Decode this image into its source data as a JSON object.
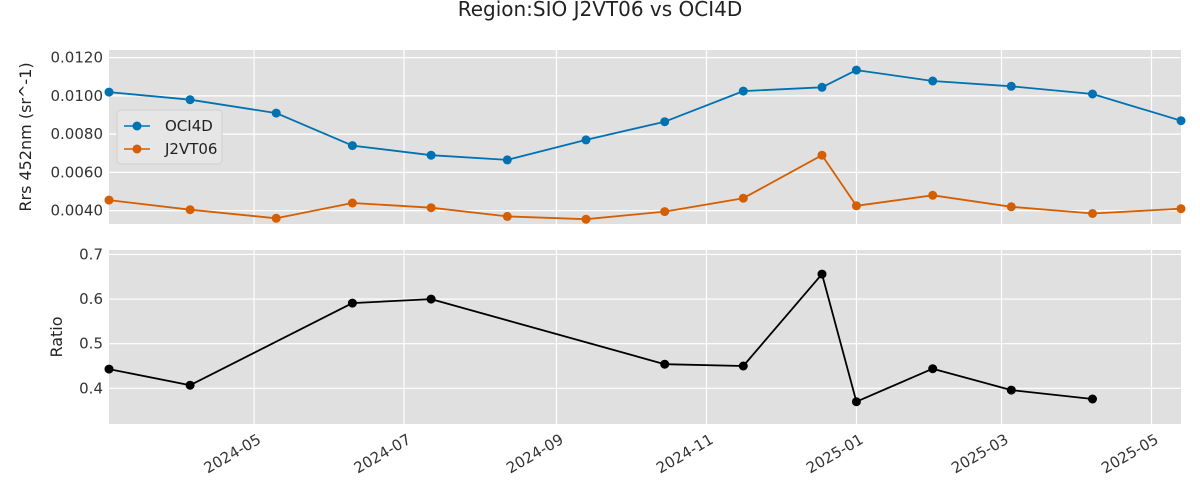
{
  "figure": {
    "title": "Region:SIO J2VT06 vs OCI4D"
  },
  "colors": {
    "oci": "#0072B2",
    "j2": "#D55E00",
    "ratio": "#000000",
    "panel_bg": "#E0E0E0",
    "grid": "#FFFFFF"
  },
  "chart_data": [
    {
      "type": "line",
      "ylabel": "Rrs 452nm (sr^-1)",
      "xlim": [
        "2024-03-03",
        "2025-05-13"
      ],
      "ylim": [
        0.0033,
        0.0124
      ],
      "yticks": [
        0.004,
        0.006,
        0.008,
        0.01,
        0.012
      ],
      "ytick_labels": [
        "0.0040",
        "0.0060",
        "0.0080",
        "0.0100",
        "0.0120"
      ],
      "grid": true,
      "legend": {
        "placement": "upper-left"
      },
      "series": [
        {
          "name": "OCI4D",
          "x": [
            "2024-03-03",
            "2024-04-05",
            "2024-05-10",
            "2024-06-10",
            "2024-07-12",
            "2024-08-12",
            "2024-09-13",
            "2024-10-15",
            "2024-11-16",
            "2024-12-18",
            "2025-01-01",
            "2025-02-01",
            "2025-03-05",
            "2025-04-07",
            "2025-05-13"
          ],
          "y": [
            0.0102,
            0.0098,
            0.0091,
            0.0074,
            0.0069,
            0.00665,
            0.0077,
            0.00865,
            0.01025,
            0.01045,
            0.01135,
            0.01078,
            0.0105,
            0.0101,
            0.0087
          ]
        },
        {
          "name": "J2VT06",
          "x": [
            "2024-03-03",
            "2024-04-05",
            "2024-05-10",
            "2024-06-10",
            "2024-07-12",
            "2024-08-12",
            "2024-09-13",
            "2024-10-15",
            "2024-11-16",
            "2024-12-18",
            "2025-01-01",
            "2025-02-01",
            "2025-03-05",
            "2025-04-07",
            "2025-05-13"
          ],
          "y": [
            0.00455,
            0.00405,
            0.0036,
            0.0044,
            0.00415,
            0.0037,
            0.00355,
            0.00395,
            0.00465,
            0.0069,
            0.00425,
            0.0048,
            0.0042,
            0.00385,
            0.0041
          ]
        }
      ]
    },
    {
      "type": "line",
      "ylabel": "Ratio",
      "xlim": [
        "2024-03-03",
        "2025-05-13"
      ],
      "ylim": [
        0.32,
        0.71
      ],
      "yticks": [
        0.4,
        0.5,
        0.6,
        0.7
      ],
      "ytick_labels": [
        "0.4",
        "0.5",
        "0.6",
        "0.7"
      ],
      "grid": true,
      "series": [
        {
          "x": [
            "2024-03-03",
            "2024-04-05",
            "2024-06-10",
            "2024-07-12",
            "2024-10-15",
            "2024-11-16",
            "2024-12-18",
            "2025-01-01",
            "2025-02-01",
            "2025-03-05",
            "2025-04-07"
          ],
          "y": [
            0.443,
            0.407,
            0.591,
            0.6,
            0.454,
            0.45,
            0.656,
            0.37,
            0.444,
            0.396,
            0.376
          ]
        }
      ]
    }
  ],
  "xaxis": {
    "ticks": [
      "2024-05-01",
      "2024-07-01",
      "2024-09-01",
      "2024-11-01",
      "2025-01-01",
      "2025-03-01",
      "2025-05-01"
    ],
    "tick_labels": [
      "2024-05",
      "2024-07",
      "2024-09",
      "2024-11",
      "2025-01",
      "2025-03",
      "2025-05"
    ]
  }
}
